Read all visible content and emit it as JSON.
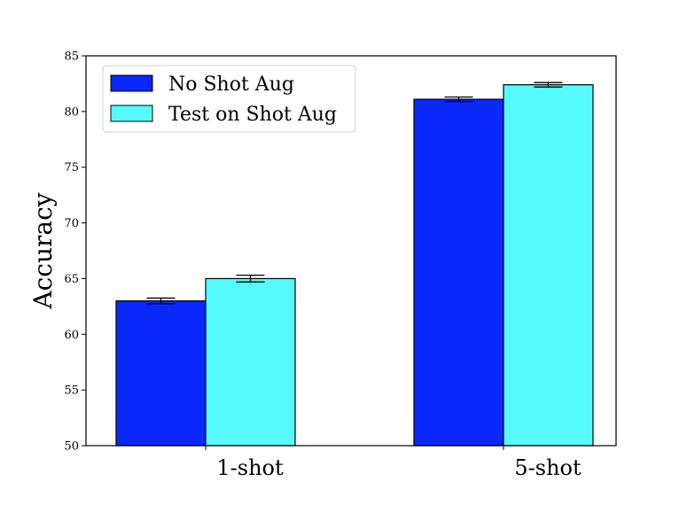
{
  "chart_data": {
    "type": "bar",
    "title": "",
    "xlabel": "",
    "ylabel": "Accuracy",
    "categories": [
      "1-shot",
      "5-shot"
    ],
    "series": [
      {
        "name": "No Shot Aug",
        "color": "#0a28fa",
        "values": [
          63.0,
          81.1
        ],
        "errors": [
          0.25,
          0.2
        ]
      },
      {
        "name": "Test on Shot Aug",
        "color": "#55fbfc",
        "values": [
          65.0,
          82.4
        ],
        "errors": [
          0.3,
          0.2
        ]
      }
    ],
    "ylim": [
      50,
      85
    ],
    "yticks": [
      50,
      55,
      60,
      65,
      70,
      75,
      80,
      85
    ],
    "grid": false,
    "legend_position": "top-left"
  }
}
